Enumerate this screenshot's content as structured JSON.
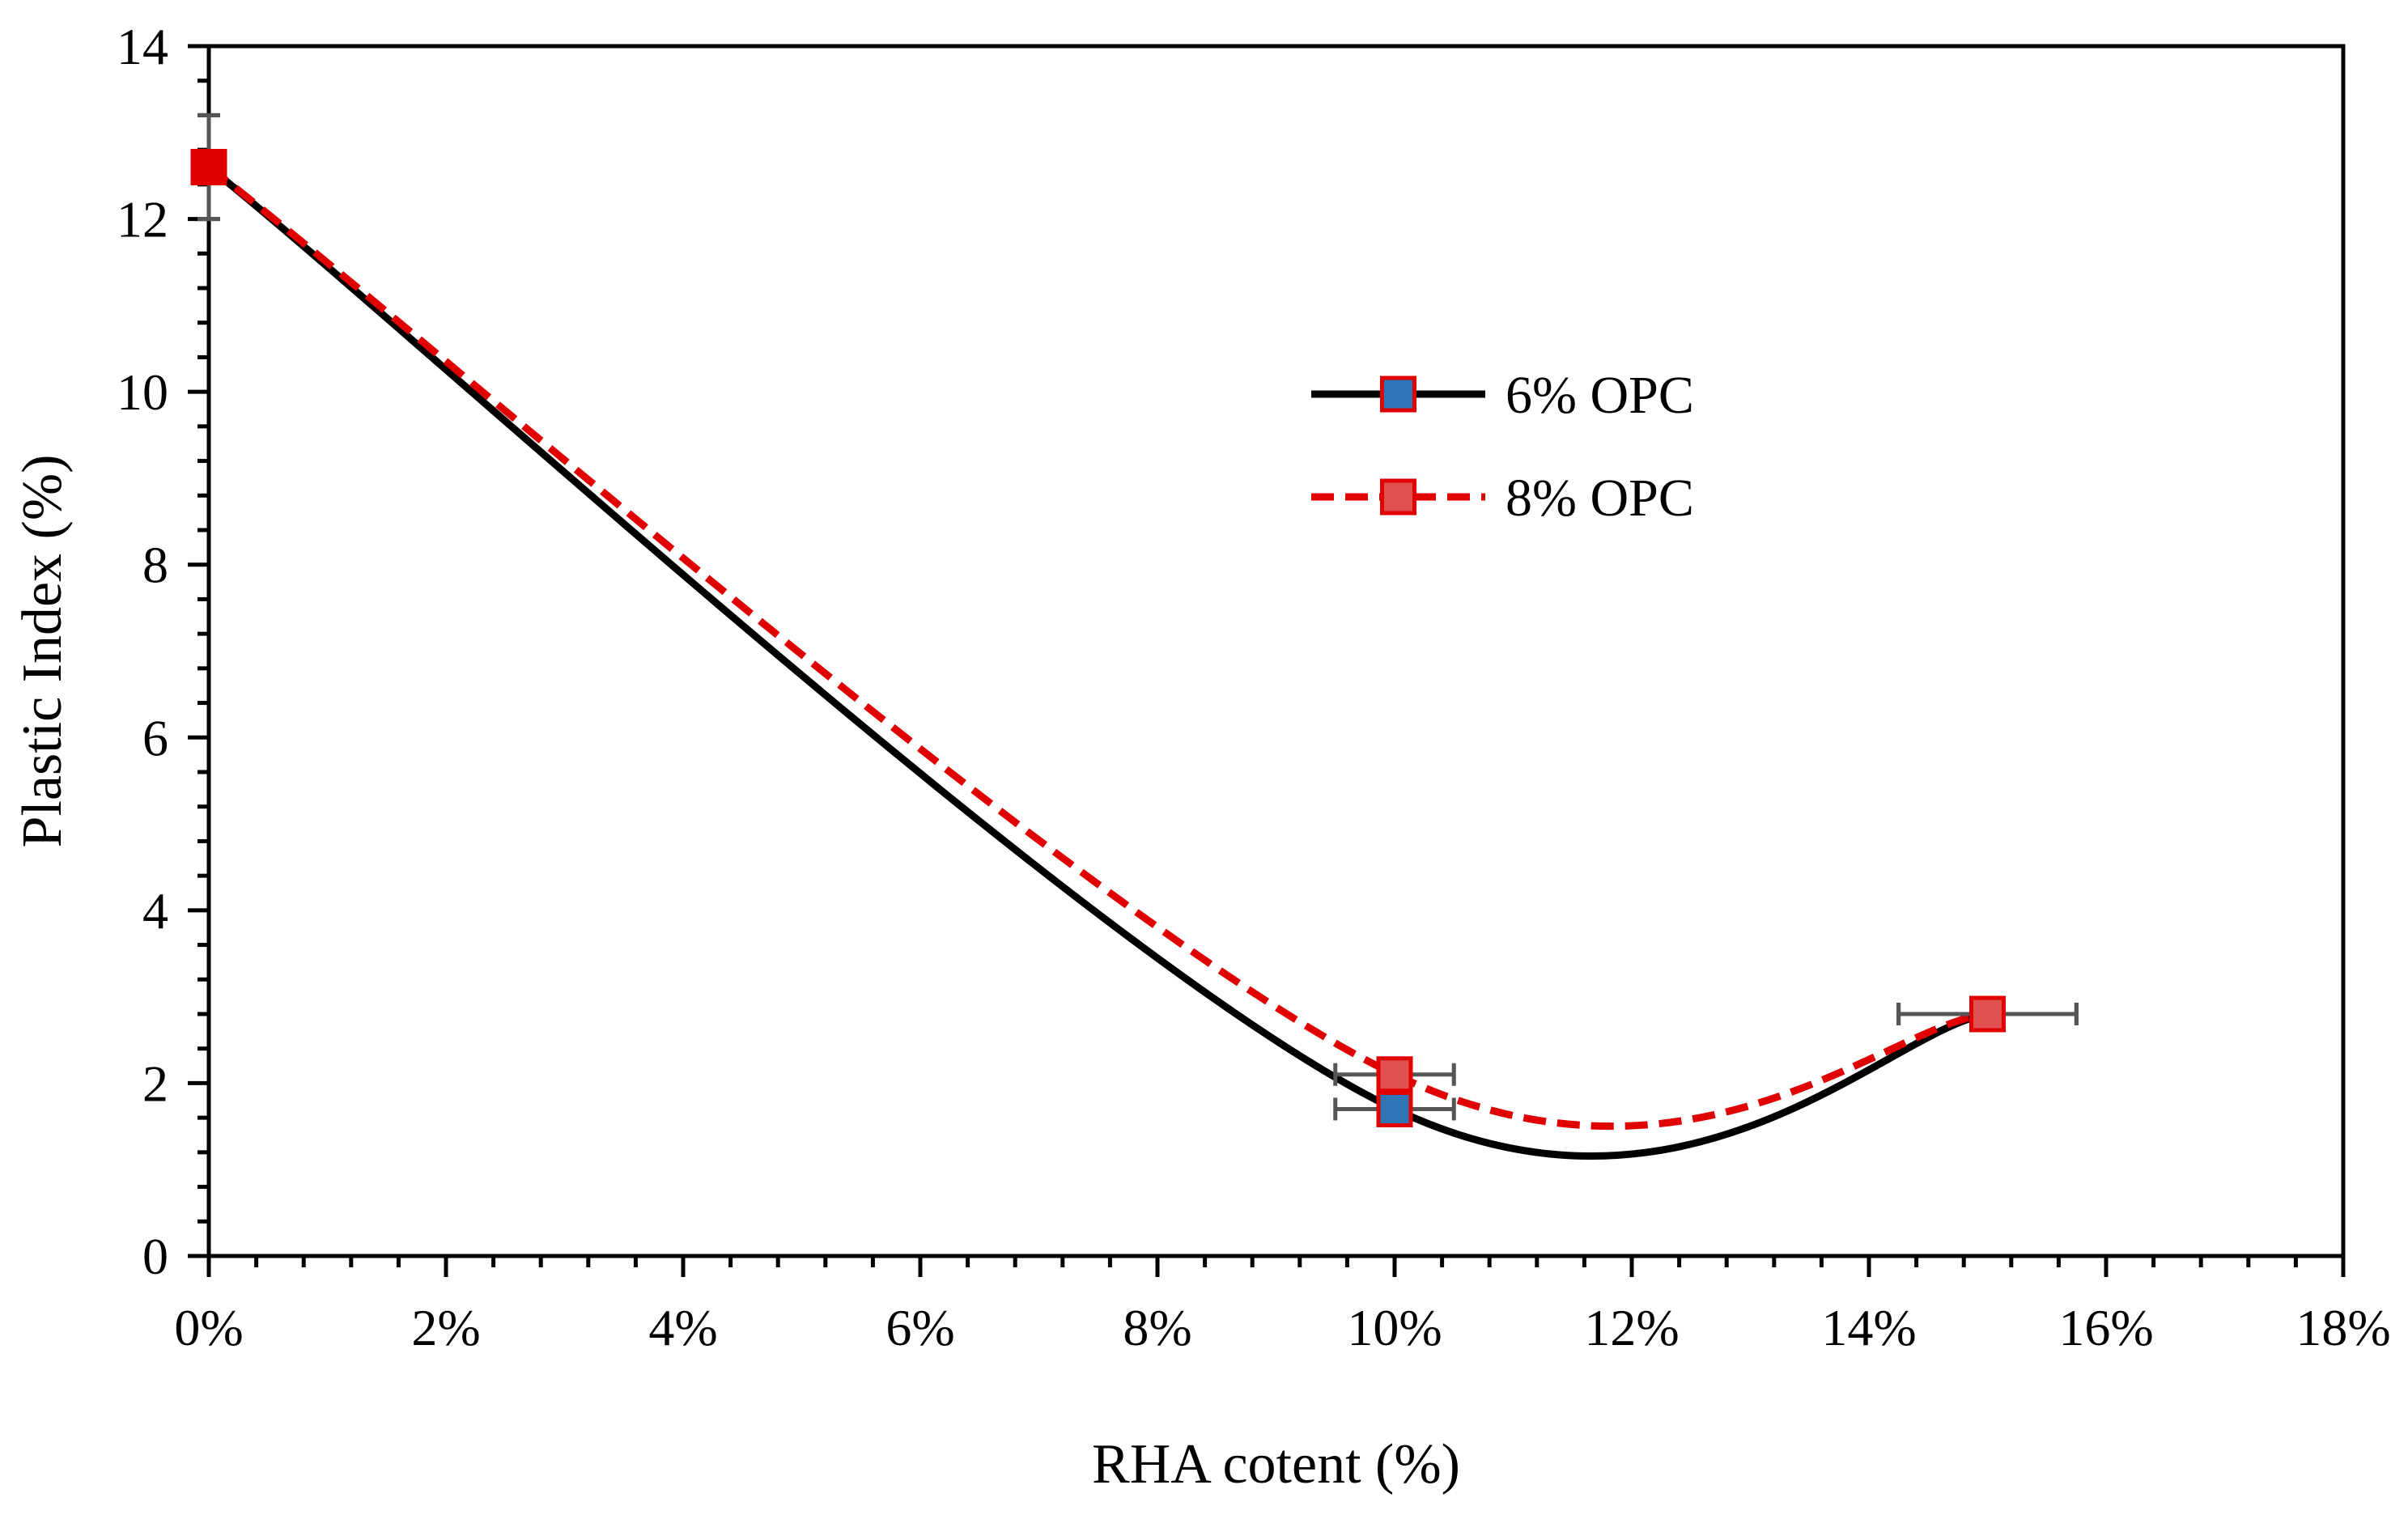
{
  "chart_data": {
    "type": "line",
    "title": "",
    "xlabel": "RHA cotent (%)",
    "ylabel": "Plastic Index (%)",
    "xlim": [
      0,
      0.18
    ],
    "ylim": [
      0,
      14
    ],
    "x_ticks": [
      0,
      0.02,
      0.04,
      0.06,
      0.08,
      0.1,
      0.12,
      0.14,
      0.16,
      0.18
    ],
    "x_tick_labels": [
      "0%",
      "2%",
      "4%",
      "6%",
      "8%",
      "10%",
      "12%",
      "14%",
      "16%",
      "18%"
    ],
    "y_ticks": [
      0,
      2,
      4,
      6,
      8,
      10,
      12,
      14
    ],
    "y_tick_labels": [
      "0",
      "2",
      "4",
      "6",
      "8",
      "10",
      "12",
      "14"
    ],
    "grid": false,
    "legend_position": "upper-center",
    "series": [
      {
        "name": "6% OPC",
        "line_color": "#000000",
        "line_style": "solid",
        "marker_fill": "#2e75b6",
        "marker_edge": "#e00000",
        "x": [
          0,
          0.1,
          0.15
        ],
        "y": [
          12.6,
          1.7,
          2.8
        ],
        "x_error": [
          0,
          0.005,
          0.0075
        ],
        "y_error": [
          0.6,
          0,
          0
        ]
      },
      {
        "name": "8% OPC",
        "line_color": "#e00000",
        "line_style": "dashed",
        "marker_fill": "#e05050",
        "marker_edge": "#e00000",
        "x": [
          0,
          0.1,
          0.15
        ],
        "y": [
          12.6,
          2.1,
          2.8
        ],
        "x_error": [
          0,
          0.005,
          0.0075
        ],
        "y_error": [
          0.6,
          0,
          0
        ]
      }
    ]
  }
}
